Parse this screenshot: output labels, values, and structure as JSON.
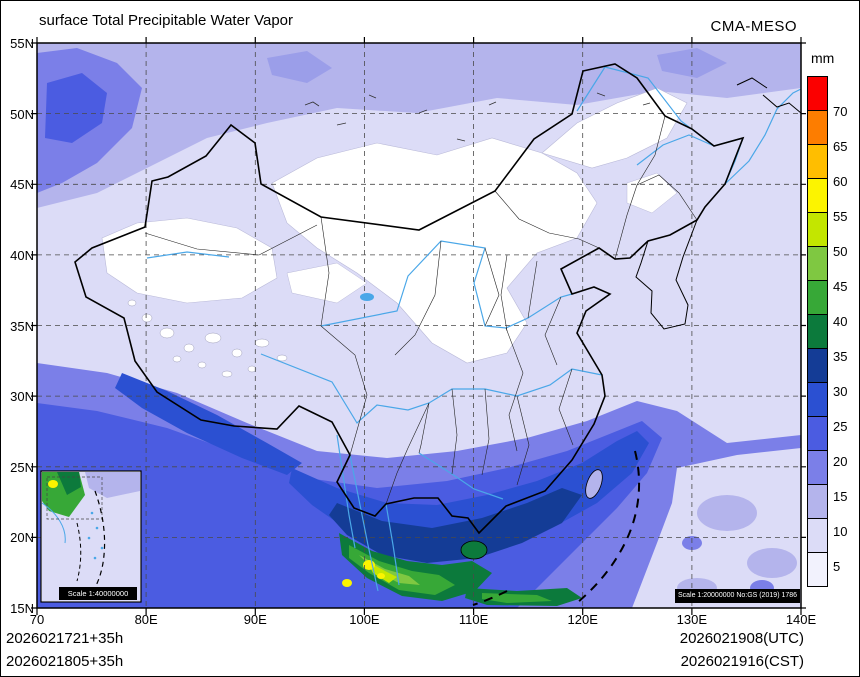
{
  "header": {
    "title": "surface Total Precipitable Water Vapor",
    "model": "CMA-MESO"
  },
  "colorbar": {
    "unit": "mm",
    "entries": [
      {
        "label": "70",
        "color": "#fb0000"
      },
      {
        "label": "65",
        "color": "#fd7d00"
      },
      {
        "label": "60",
        "color": "#ffbe00"
      },
      {
        "label": "55",
        "color": "#fcf400"
      },
      {
        "label": "50",
        "color": "#c3e600"
      },
      {
        "label": "45",
        "color": "#7fc841"
      },
      {
        "label": "40",
        "color": "#37a837"
      },
      {
        "label": "35",
        "color": "#0c7a3c"
      },
      {
        "label": "30",
        "color": "#143c96"
      },
      {
        "label": "25",
        "color": "#2b50d2"
      },
      {
        "label": "20",
        "color": "#4b5ce1"
      },
      {
        "label": "15",
        "color": "#7b7fe8"
      },
      {
        "label": "10",
        "color": "#b4b4ec"
      },
      {
        "label": "5",
        "color": "#dcdcf7"
      },
      {
        "label": "",
        "color": "#f2f2fd"
      }
    ]
  },
  "axes": {
    "lat_ticks": [
      "55N",
      "50N",
      "45N",
      "40N",
      "35N",
      "30N",
      "25N",
      "20N",
      "15N"
    ],
    "lon_ticks": [
      "70",
      "80E",
      "90E",
      "100E",
      "110E",
      "120E",
      "130E",
      "140E"
    ]
  },
  "footer": {
    "init_utc": "2026021721+35h",
    "init_cst": "2026021805+35h",
    "valid_utc": "2026021908(UTC)",
    "valid_cst": "2026021916(CST)"
  },
  "map": {
    "inset_scale_label": "Scale 1:40000000",
    "scale_label": "Scale 1:20000000 No:GS (2019) 1786"
  }
}
